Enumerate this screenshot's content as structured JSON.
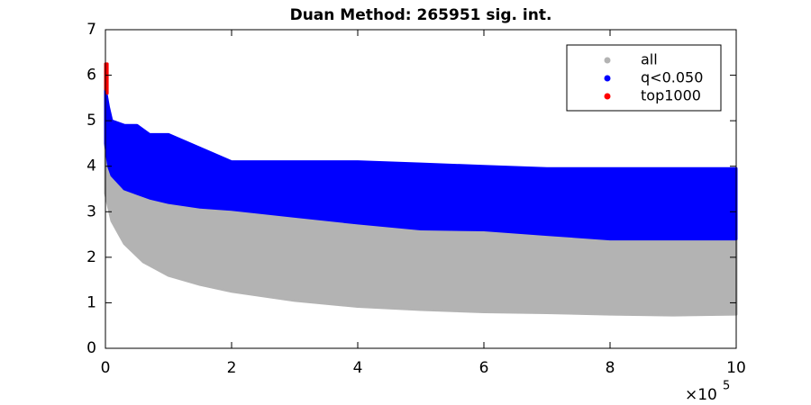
{
  "chart_data": {
    "type": "scatter",
    "title": "Duan Method: 265951 sig. int.",
    "x_multiplier": {
      "base": "×10",
      "exponent": "5"
    },
    "xlim": [
      0,
      10
    ],
    "xticks": [
      0,
      2,
      4,
      6,
      8,
      10
    ],
    "ylim": [
      0,
      7
    ],
    "yticks": [
      0,
      1,
      2,
      3,
      4,
      5,
      6,
      7
    ],
    "legend": "northeast",
    "series": [
      {
        "name": "all",
        "color": "#b3b3b3",
        "x": [
          0,
          0.1,
          0.3,
          0.6,
          1,
          1.5,
          2,
          3,
          4,
          5,
          6,
          7,
          8,
          9,
          10
        ],
        "low": [
          3.4,
          2.8,
          2.3,
          1.9,
          1.6,
          1.4,
          1.25,
          1.05,
          0.92,
          0.85,
          0.8,
          0.78,
          0.75,
          0.73,
          0.75
        ],
        "high": [
          5.2,
          4.2,
          3.8,
          3.5,
          3.3,
          3.2,
          3.1,
          2.9,
          2.75,
          2.65,
          2.6,
          2.5,
          2.4,
          2.4,
          2.4
        ]
      },
      {
        "name": "q<0.050",
        "color": "#0000ff",
        "x": [
          0,
          0.05,
          0.1,
          0.3,
          0.5,
          0.7,
          1,
          1.5,
          2,
          3,
          4,
          5,
          6,
          7,
          8,
          9,
          10
        ],
        "low": [
          4.5,
          4.0,
          3.8,
          3.5,
          3.4,
          3.3,
          3.2,
          3.1,
          3.05,
          2.9,
          2.75,
          2.62,
          2.6,
          2.5,
          2.4,
          2.4,
          2.4
        ],
        "high": [
          5.7,
          5.3,
          5.0,
          4.9,
          4.9,
          4.7,
          4.7,
          4.4,
          4.1,
          4.1,
          4.1,
          4.05,
          4.0,
          3.95,
          3.95,
          3.95,
          3.95
        ]
      },
      {
        "name": "top1000",
        "color": "#ff0000",
        "x": [
          0,
          0.03
        ],
        "low": [
          5.7,
          5.6
        ],
        "high": [
          6.25,
          6.25
        ]
      }
    ]
  }
}
